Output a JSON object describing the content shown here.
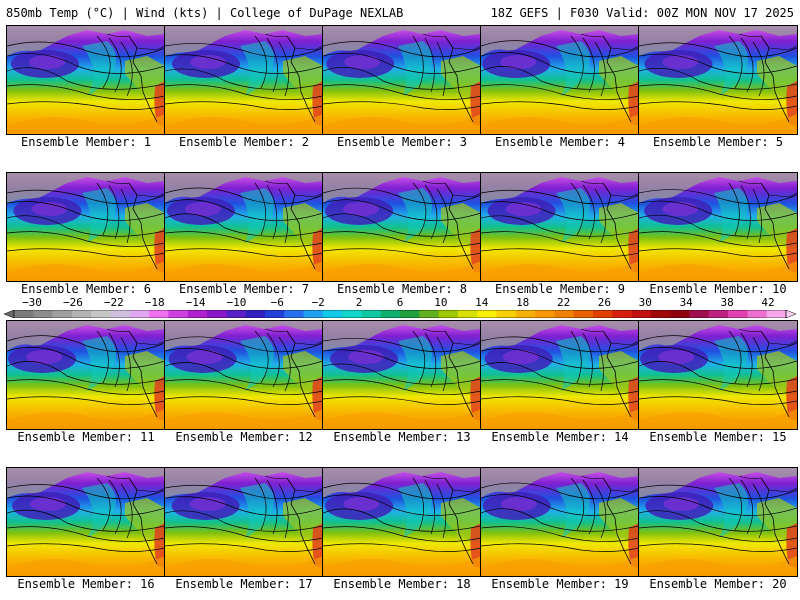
{
  "header": {
    "left": "850mb Temp (°C) | Wind (kts) | College of DuPage NEXLAB",
    "right": "18Z GEFS | F030 Valid: 00Z MON NOV 17 2025"
  },
  "colorbar": {
    "labels": [
      "−30",
      "−26",
      "−22",
      "−18",
      "−14",
      "−10",
      "−6",
      "−2",
      "2",
      "6",
      "10",
      "14",
      "18",
      "22",
      "26",
      "30",
      "34",
      "38",
      "42"
    ],
    "colors": [
      "#7a7a7a",
      "#8c8c8c",
      "#a0a0a0",
      "#b4b4b4",
      "#c6c6c6",
      "#d0c0e0",
      "#e0a8f0",
      "#f070f0",
      "#d040e0",
      "#b020d0",
      "#8818c8",
      "#5a20c8",
      "#3020c0",
      "#2040d8",
      "#2870f0",
      "#20a0f0",
      "#10c8e8",
      "#10d8c8",
      "#10c8a0",
      "#10b070",
      "#20a040",
      "#60b020",
      "#a0c800",
      "#d8e000",
      "#f8f000",
      "#f8d000",
      "#f8b000",
      "#f89800",
      "#f08000",
      "#e86000",
      "#e04000",
      "#d82010",
      "#c01010",
      "#a00808",
      "#900010",
      "#a01050",
      "#c02080",
      "#e040b0",
      "#f070d0",
      "#f8a8e8"
    ]
  },
  "panels": [
    {
      "label": "Ensemble Member: 1"
    },
    {
      "label": "Ensemble Member: 2"
    },
    {
      "label": "Ensemble Member: 3"
    },
    {
      "label": "Ensemble Member: 4"
    },
    {
      "label": "Ensemble Member: 5"
    },
    {
      "label": "Ensemble Member: 6"
    },
    {
      "label": "Ensemble Member: 7"
    },
    {
      "label": "Ensemble Member: 8"
    },
    {
      "label": "Ensemble Member: 9"
    },
    {
      "label": "Ensemble Member: 10"
    },
    {
      "label": "Ensemble Member: 11"
    },
    {
      "label": "Ensemble Member: 12"
    },
    {
      "label": "Ensemble Member: 13"
    },
    {
      "label": "Ensemble Member: 14"
    },
    {
      "label": "Ensemble Member: 15"
    },
    {
      "label": "Ensemble Member: 16"
    },
    {
      "label": "Ensemble Member: 17"
    },
    {
      "label": "Ensemble Member: 18"
    },
    {
      "label": "Ensemble Member: 19"
    },
    {
      "label": "Ensemble Member: 20"
    }
  ]
}
